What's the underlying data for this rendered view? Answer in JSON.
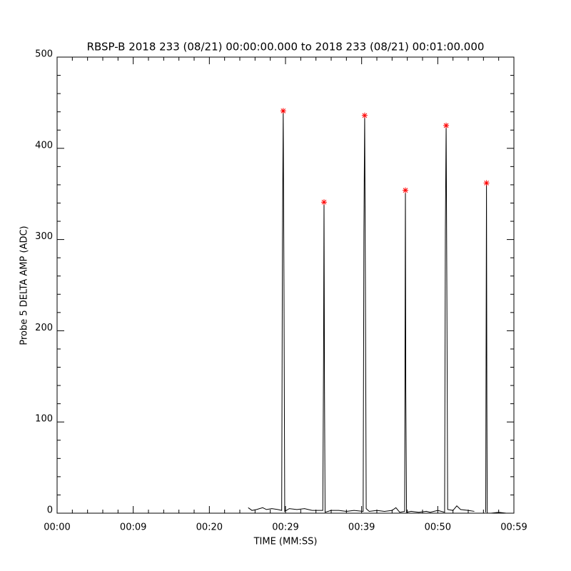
{
  "chart_data": {
    "type": "line",
    "title": "RBSP-B 2018 233 (08/21) 00:00:00.000 to 2018 233 (08/21) 00:01:00.000",
    "xlabel": "TIME (MM:SS)",
    "ylabel": "Probe 5 DELTA AMP (ADC)",
    "xlim": [
      0,
      60
    ],
    "ylim": [
      0,
      500
    ],
    "xticks": [
      {
        "value": 0,
        "label": "00:00"
      },
      {
        "value": 10,
        "label": "00:09"
      },
      {
        "value": 20,
        "label": "00:20"
      },
      {
        "value": 30,
        "label": "00:29"
      },
      {
        "value": 40,
        "label": "00:39"
      },
      {
        "value": 50,
        "label": "00:50"
      },
      {
        "value": 60,
        "label": "00:59"
      }
    ],
    "yticks": [
      0,
      100,
      200,
      300,
      400,
      500
    ],
    "xminorticks": [
      2,
      4,
      6,
      8,
      12,
      14,
      16,
      18,
      22,
      24,
      26,
      28,
      32,
      34,
      36,
      38,
      42,
      44,
      46,
      48,
      52,
      54,
      56,
      58
    ],
    "yminorticks": [
      20,
      40,
      60,
      80,
      120,
      140,
      160,
      180,
      220,
      240,
      260,
      280,
      320,
      340,
      360,
      380,
      420,
      440,
      460,
      480
    ],
    "series": [
      {
        "name": "Probe 5",
        "color": "#000000",
        "marker": "none",
        "x": [
          25.1,
          25.6,
          26.2,
          27,
          27.5,
          28.2,
          29,
          29.5,
          29.6,
          29.7,
          29.8,
          29.9,
          30.5,
          31.5,
          32.5,
          33.5,
          34.9,
          35.0,
          35.06,
          35.12,
          35.2,
          36,
          37,
          38,
          39,
          40.2,
          40.3,
          40.4,
          40.5,
          40.6,
          41,
          42,
          43,
          44,
          44.5,
          45,
          45.65,
          45.7,
          45.75,
          45.8,
          45.9,
          46.5,
          47.5,
          48.5,
          49,
          50,
          50.9,
          51.0,
          51.1,
          51.2,
          51.3,
          52,
          52.5,
          53,
          54,
          54.8,
          55.5,
          56.3,
          56.35,
          56.4,
          56.45,
          56.5,
          57,
          58,
          59,
          60
        ],
        "values": [
          6,
          3,
          4,
          6,
          4,
          5,
          4,
          3,
          300,
          441,
          250,
          2,
          5,
          4,
          5,
          3,
          3,
          170,
          341,
          140,
          1,
          3,
          3,
          2,
          3,
          2,
          310,
          436,
          245,
          5,
          2,
          3,
          2,
          3,
          6,
          1,
          2,
          185,
          354,
          135,
          1,
          2,
          1,
          2,
          1,
          3,
          1,
          310,
          425,
          235,
          4,
          3,
          8,
          4,
          3,
          2,
          null,
          1,
          190,
          362,
          120,
          0,
          0,
          1,
          0,
          0
        ]
      },
      {
        "name": "Peaks",
        "color": "#ff0000",
        "marker": "asterisk",
        "x": [
          29.7,
          35.06,
          40.4,
          45.75,
          51.1,
          56.4
        ],
        "values": [
          441,
          341,
          436,
          354,
          425,
          362
        ]
      }
    ]
  }
}
